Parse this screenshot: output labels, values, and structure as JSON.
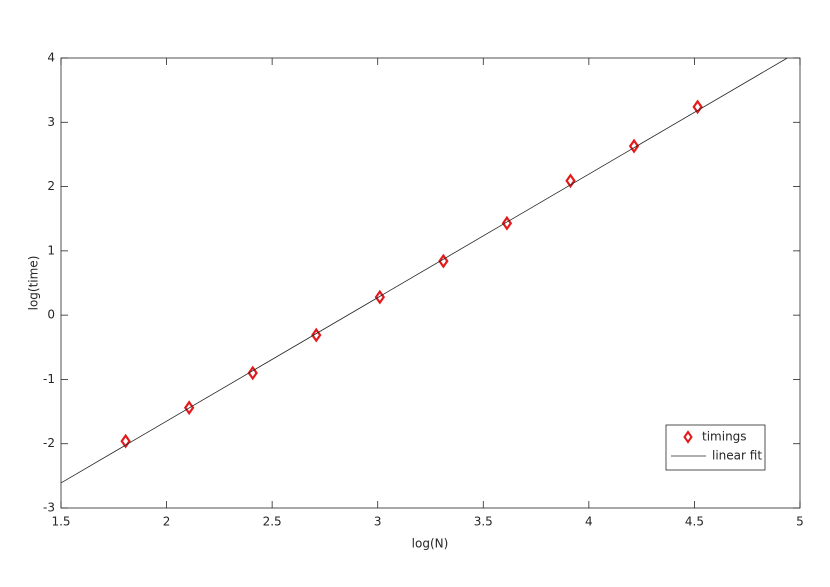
{
  "chart_data": {
    "type": "line",
    "xlabel": "log(N)",
    "ylabel": "log(time)",
    "xlim": [
      1.5,
      5
    ],
    "ylim": [
      -3,
      4
    ],
    "xticks": [
      1.5,
      2,
      2.5,
      3,
      3.5,
      4,
      4.5,
      5
    ],
    "yticks": [
      -3,
      -2,
      -1,
      0,
      1,
      2,
      3,
      4
    ],
    "legend": "southeast",
    "series": [
      {
        "name": "timings",
        "color": "#e31a1c",
        "mode": "markers",
        "marker": "diamond",
        "x": [
          1.806,
          2.107,
          2.408,
          2.709,
          3.01,
          3.311,
          3.612,
          3.913,
          4.214,
          4.515
        ],
        "values": [
          -1.96,
          -1.44,
          -0.9,
          -0.31,
          0.28,
          0.84,
          1.43,
          2.09,
          2.63,
          3.24
        ]
      },
      {
        "name": "linear fit",
        "color": "#262626",
        "mode": "line",
        "x": [
          1.5,
          4.94
        ],
        "values": [
          -2.61,
          4
        ]
      }
    ]
  }
}
